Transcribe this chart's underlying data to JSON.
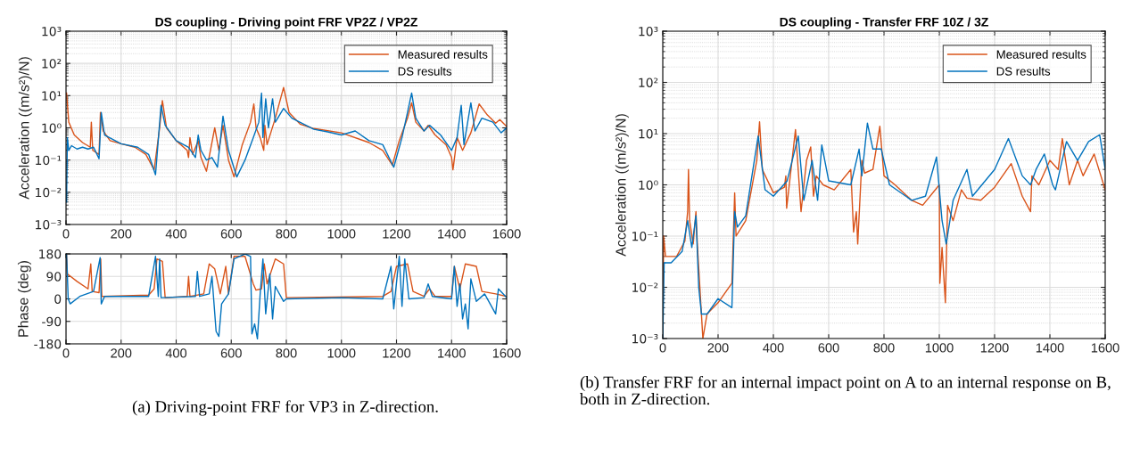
{
  "chart_data": [
    {
      "type": "line",
      "title": "DS coupling - Driving point FRF VP2Z / VP2Z",
      "ylabel": "Acceleration ((m/s²)/N)",
      "log": "y",
      "grid": true,
      "legend": "top right",
      "xlim": [
        0,
        1600
      ],
      "xticks": [
        0,
        200,
        400,
        600,
        800,
        1000,
        1200,
        1400,
        1600
      ],
      "ylim": [
        0.001,
        1000
      ],
      "yticks": [
        {
          "value": 0.001,
          "label": "10⁻³"
        },
        {
          "value": 0.01,
          "label": "10⁻²"
        },
        {
          "value": 0.1,
          "label": "10⁻¹"
        },
        {
          "value": 1,
          "label": "10⁰"
        },
        {
          "value": 10,
          "label": "10¹"
        },
        {
          "value": 100,
          "label": "10²"
        },
        {
          "value": 1000,
          "label": "10³"
        }
      ],
      "series": [
        {
          "name": "Measured results",
          "color": "#d95319",
          "x": [
            2,
            10,
            30,
            60,
            88,
            92,
            97,
            120,
            125,
            135,
            160,
            200,
            250,
            290,
            320,
            340,
            350,
            365,
            400,
            440,
            445,
            450,
            460,
            480,
            490,
            510,
            540,
            555,
            570,
            590,
            610,
            640,
            670,
            682,
            690,
            705,
            718,
            722,
            730,
            760,
            790,
            810,
            850,
            900,
            1000,
            1100,
            1150,
            1185,
            1210,
            1240,
            1255,
            1270,
            1300,
            1315,
            1340,
            1380,
            1400,
            1405,
            1420,
            1440,
            1470,
            1500,
            1530,
            1560,
            1575,
            1600
          ],
          "values": [
            12,
            1.5,
            0.6,
            0.35,
            0.25,
            1.5,
            0.2,
            0.15,
            3,
            0.8,
            0.4,
            0.32,
            0.25,
            0.15,
            0.05,
            1,
            7,
            1,
            0.4,
            0.2,
            0.12,
            0.5,
            0.15,
            0.4,
            0.12,
            0.045,
            1,
            0.2,
            1.2,
            0.1,
            0.03,
            0.3,
            1.5,
            5.5,
            1,
            0.5,
            0.2,
            1.2,
            0.3,
            2,
            18,
            3,
            1.3,
            0.95,
            0.7,
            0.35,
            0.2,
            0.07,
            0.4,
            2,
            6,
            1.5,
            0.8,
            1.2,
            0.6,
            0.3,
            0.12,
            0.05,
            0.5,
            0.2,
            0.7,
            5.5,
            2.5,
            1.4,
            1.8,
            1.1
          ]
        },
        {
          "name": "DS results",
          "color": "#0072bd",
          "x": [
            2,
            5,
            10,
            20,
            40,
            60,
            80,
            100,
            120,
            128,
            140,
            200,
            260,
            300,
            325,
            345,
            360,
            400,
            445,
            470,
            480,
            490,
            510,
            530,
            550,
            570,
            590,
            620,
            650,
            680,
            700,
            710,
            715,
            725,
            735,
            750,
            760,
            790,
            820,
            900,
            950,
            1000,
            1050,
            1100,
            1150,
            1190,
            1220,
            1240,
            1255,
            1270,
            1300,
            1320,
            1360,
            1400,
            1420,
            1435,
            1445,
            1470,
            1485,
            1510,
            1550,
            1580,
            1600
          ],
          "values": [
            0.005,
            0.5,
            0.2,
            0.28,
            0.22,
            0.25,
            0.22,
            0.25,
            0.11,
            3,
            0.6,
            0.32,
            0.25,
            0.15,
            0.035,
            5,
            1.2,
            0.4,
            0.25,
            0.12,
            0.6,
            0.2,
            0.1,
            0.12,
            0.06,
            2.3,
            0.2,
            0.03,
            0.1,
            0.5,
            1.5,
            12,
            0.5,
            8,
            1,
            8,
            1.5,
            4,
            2,
            0.9,
            0.75,
            0.6,
            0.8,
            0.4,
            0.3,
            0.06,
            0.5,
            3,
            12,
            2,
            0.8,
            1.2,
            0.6,
            0.2,
            0.5,
            5,
            0.3,
            6,
            0.8,
            2,
            1.5,
            0.7,
            1
          ]
        }
      ]
    },
    {
      "type": "line",
      "ylabel": "Phase (deg)",
      "grid": true,
      "xlim": [
        0,
        1600
      ],
      "xticks": [
        0,
        200,
        400,
        600,
        800,
        1000,
        1200,
        1400,
        1600
      ],
      "ylim": [
        -180,
        180
      ],
      "yticks": [
        -180,
        -90,
        0,
        90,
        180
      ],
      "annotations": [
        "(a) Driving-point FRF for VP3 in Z-direction."
      ],
      "series": [
        {
          "color": "#d95319",
          "x": [
            2,
            5,
            40,
            80,
            90,
            95,
            120,
            126,
            130,
            300,
            320,
            330,
            350,
            360,
            440,
            445,
            450,
            500,
            520,
            540,
            560,
            580,
            590,
            610,
            650,
            680,
            690,
            710,
            720,
            730,
            760,
            790,
            800,
            1150,
            1180,
            1200,
            1240,
            1260,
            1300,
            1320,
            1340,
            1400,
            1410,
            1430,
            1450,
            1490,
            1510,
            1560,
            1600
          ],
          "values": [
            180,
            100,
            70,
            40,
            140,
            30,
            25,
            160,
            10,
            15,
            40,
            160,
            150,
            5,
            10,
            90,
            10,
            20,
            140,
            120,
            20,
            130,
            20,
            170,
            170,
            60,
            35,
            40,
            140,
            60,
            160,
            140,
            5,
            10,
            30,
            130,
            140,
            30,
            10,
            40,
            10,
            10,
            130,
            40,
            140,
            130,
            30,
            20,
            10
          ]
        },
        {
          "color": "#0072bd",
          "x": [
            2,
            8,
            15,
            50,
            100,
            124,
            128,
            140,
            300,
            325,
            335,
            340,
            345,
            470,
            477,
            485,
            520,
            530,
            545,
            555,
            565,
            590,
            610,
            650,
            670,
            675,
            685,
            695,
            705,
            715,
            725,
            740,
            750,
            760,
            790,
            800,
            1000,
            1150,
            1180,
            1190,
            1210,
            1220,
            1230,
            1245,
            1300,
            1315,
            1330,
            1400,
            1410,
            1420,
            1430,
            1440,
            1450,
            1460,
            1470,
            1490,
            1520,
            1560,
            1570,
            1600
          ],
          "values": [
            180,
            0,
            -20,
            10,
            30,
            165,
            -20,
            10,
            10,
            170,
            10,
            160,
            5,
            10,
            110,
            10,
            20,
            90,
            -130,
            -150,
            -20,
            20,
            160,
            180,
            170,
            -140,
            -100,
            -160,
            20,
            160,
            -60,
            100,
            -80,
            50,
            -10,
            0,
            5,
            0,
            130,
            -40,
            170,
            -30,
            160,
            0,
            5,
            60,
            10,
            0,
            130,
            -30,
            60,
            -80,
            -20,
            -120,
            80,
            -10,
            20,
            -60,
            40,
            5
          ]
        }
      ]
    },
    {
      "type": "line",
      "title": "DS coupling - Transfer FRF 10Z / 3Z",
      "ylabel": "Acceleration ((m/s²)/N)",
      "log": "y",
      "grid": true,
      "legend": "top right",
      "xlim": [
        0,
        1600
      ],
      "xticks": [
        0,
        200,
        400,
        600,
        800,
        1000,
        1200,
        1400,
        1600
      ],
      "ylim": [
        0.001,
        1000
      ],
      "yticks": [
        {
          "value": 0.001,
          "label": "10⁻³"
        },
        {
          "value": 0.01,
          "label": "10⁻²"
        },
        {
          "value": 0.1,
          "label": "10⁻¹"
        },
        {
          "value": 1,
          "label": "10⁰"
        },
        {
          "value": 10,
          "label": "10¹"
        },
        {
          "value": 100,
          "label": "10²"
        },
        {
          "value": 1000,
          "label": "10³"
        }
      ],
      "annotations": [
        "(b) Transfer FRF for an internal impact point on A to an internal response on B, both in Z-direction."
      ],
      "series": [
        {
          "name": "Measured results",
          "color": "#d95319",
          "x": [
            0,
            3,
            10,
            50,
            80,
            90,
            93,
            97,
            110,
            120,
            125,
            145,
            160,
            200,
            250,
            260,
            265,
            300,
            340,
            350,
            360,
            400,
            440,
            445,
            448,
            480,
            500,
            520,
            535,
            545,
            555,
            580,
            620,
            680,
            690,
            700,
            705,
            720,
            730,
            760,
            785,
            800,
            840,
            900,
            940,
            1000,
            1002,
            1010,
            1022,
            1030,
            1050,
            1080,
            1100,
            1150,
            1200,
            1260,
            1300,
            1330,
            1335,
            1360,
            1400,
            1430,
            1445,
            1470,
            1500,
            1520,
            1560,
            1600
          ],
          "values": [
            0.001,
            0.1,
            0.04,
            0.04,
            0.08,
            0.3,
            2,
            0.2,
            0.07,
            0.3,
            0.07,
            0.001,
            0.003,
            0.005,
            0.012,
            0.7,
            0.1,
            0.2,
            3,
            17,
            2,
            0.7,
            0.9,
            1.5,
            0.35,
            12,
            0.3,
            3,
            5.5,
            0.6,
            1.5,
            1,
            0.8,
            2,
            0.12,
            0.3,
            0.07,
            3,
            1.7,
            2,
            14,
            1.5,
            1,
            0.5,
            0.4,
            1,
            0.012,
            0.06,
            0.005,
            0.4,
            0.2,
            0.8,
            0.55,
            0.5,
            0.9,
            2.6,
            0.6,
            0.3,
            1.5,
            1,
            3,
            2,
            8,
            1,
            3,
            1.5,
            4,
            0.8
          ]
        },
        {
          "name": "DS results",
          "color": "#0072bd",
          "x": [
            0,
            5,
            30,
            70,
            90,
            105,
            120,
            130,
            140,
            160,
            200,
            250,
            260,
            270,
            300,
            345,
            370,
            400,
            450,
            490,
            510,
            540,
            560,
            575,
            600,
            680,
            710,
            720,
            740,
            760,
            790,
            820,
            900,
            950,
            990,
            1010,
            1025,
            1050,
            1100,
            1120,
            1200,
            1250,
            1300,
            1330,
            1350,
            1380,
            1410,
            1420,
            1460,
            1500,
            1540,
            1580,
            1600
          ],
          "values": [
            0.001,
            0.03,
            0.03,
            0.05,
            0.2,
            0.06,
            0.25,
            0.01,
            0.003,
            0.003,
            0.006,
            0.004,
            0.3,
            0.15,
            0.25,
            9,
            0.8,
            0.6,
            1.2,
            9,
            0.5,
            3,
            0.5,
            6,
            1.2,
            1,
            5,
            1.5,
            16,
            5,
            5,
            1,
            0.5,
            0.6,
            3.5,
            0.2,
            0.07,
            0.5,
            2,
            0.6,
            2,
            8,
            1.5,
            1,
            2,
            4,
            1,
            0.8,
            7,
            3,
            7,
            9.5,
            2
          ]
        }
      ]
    }
  ]
}
